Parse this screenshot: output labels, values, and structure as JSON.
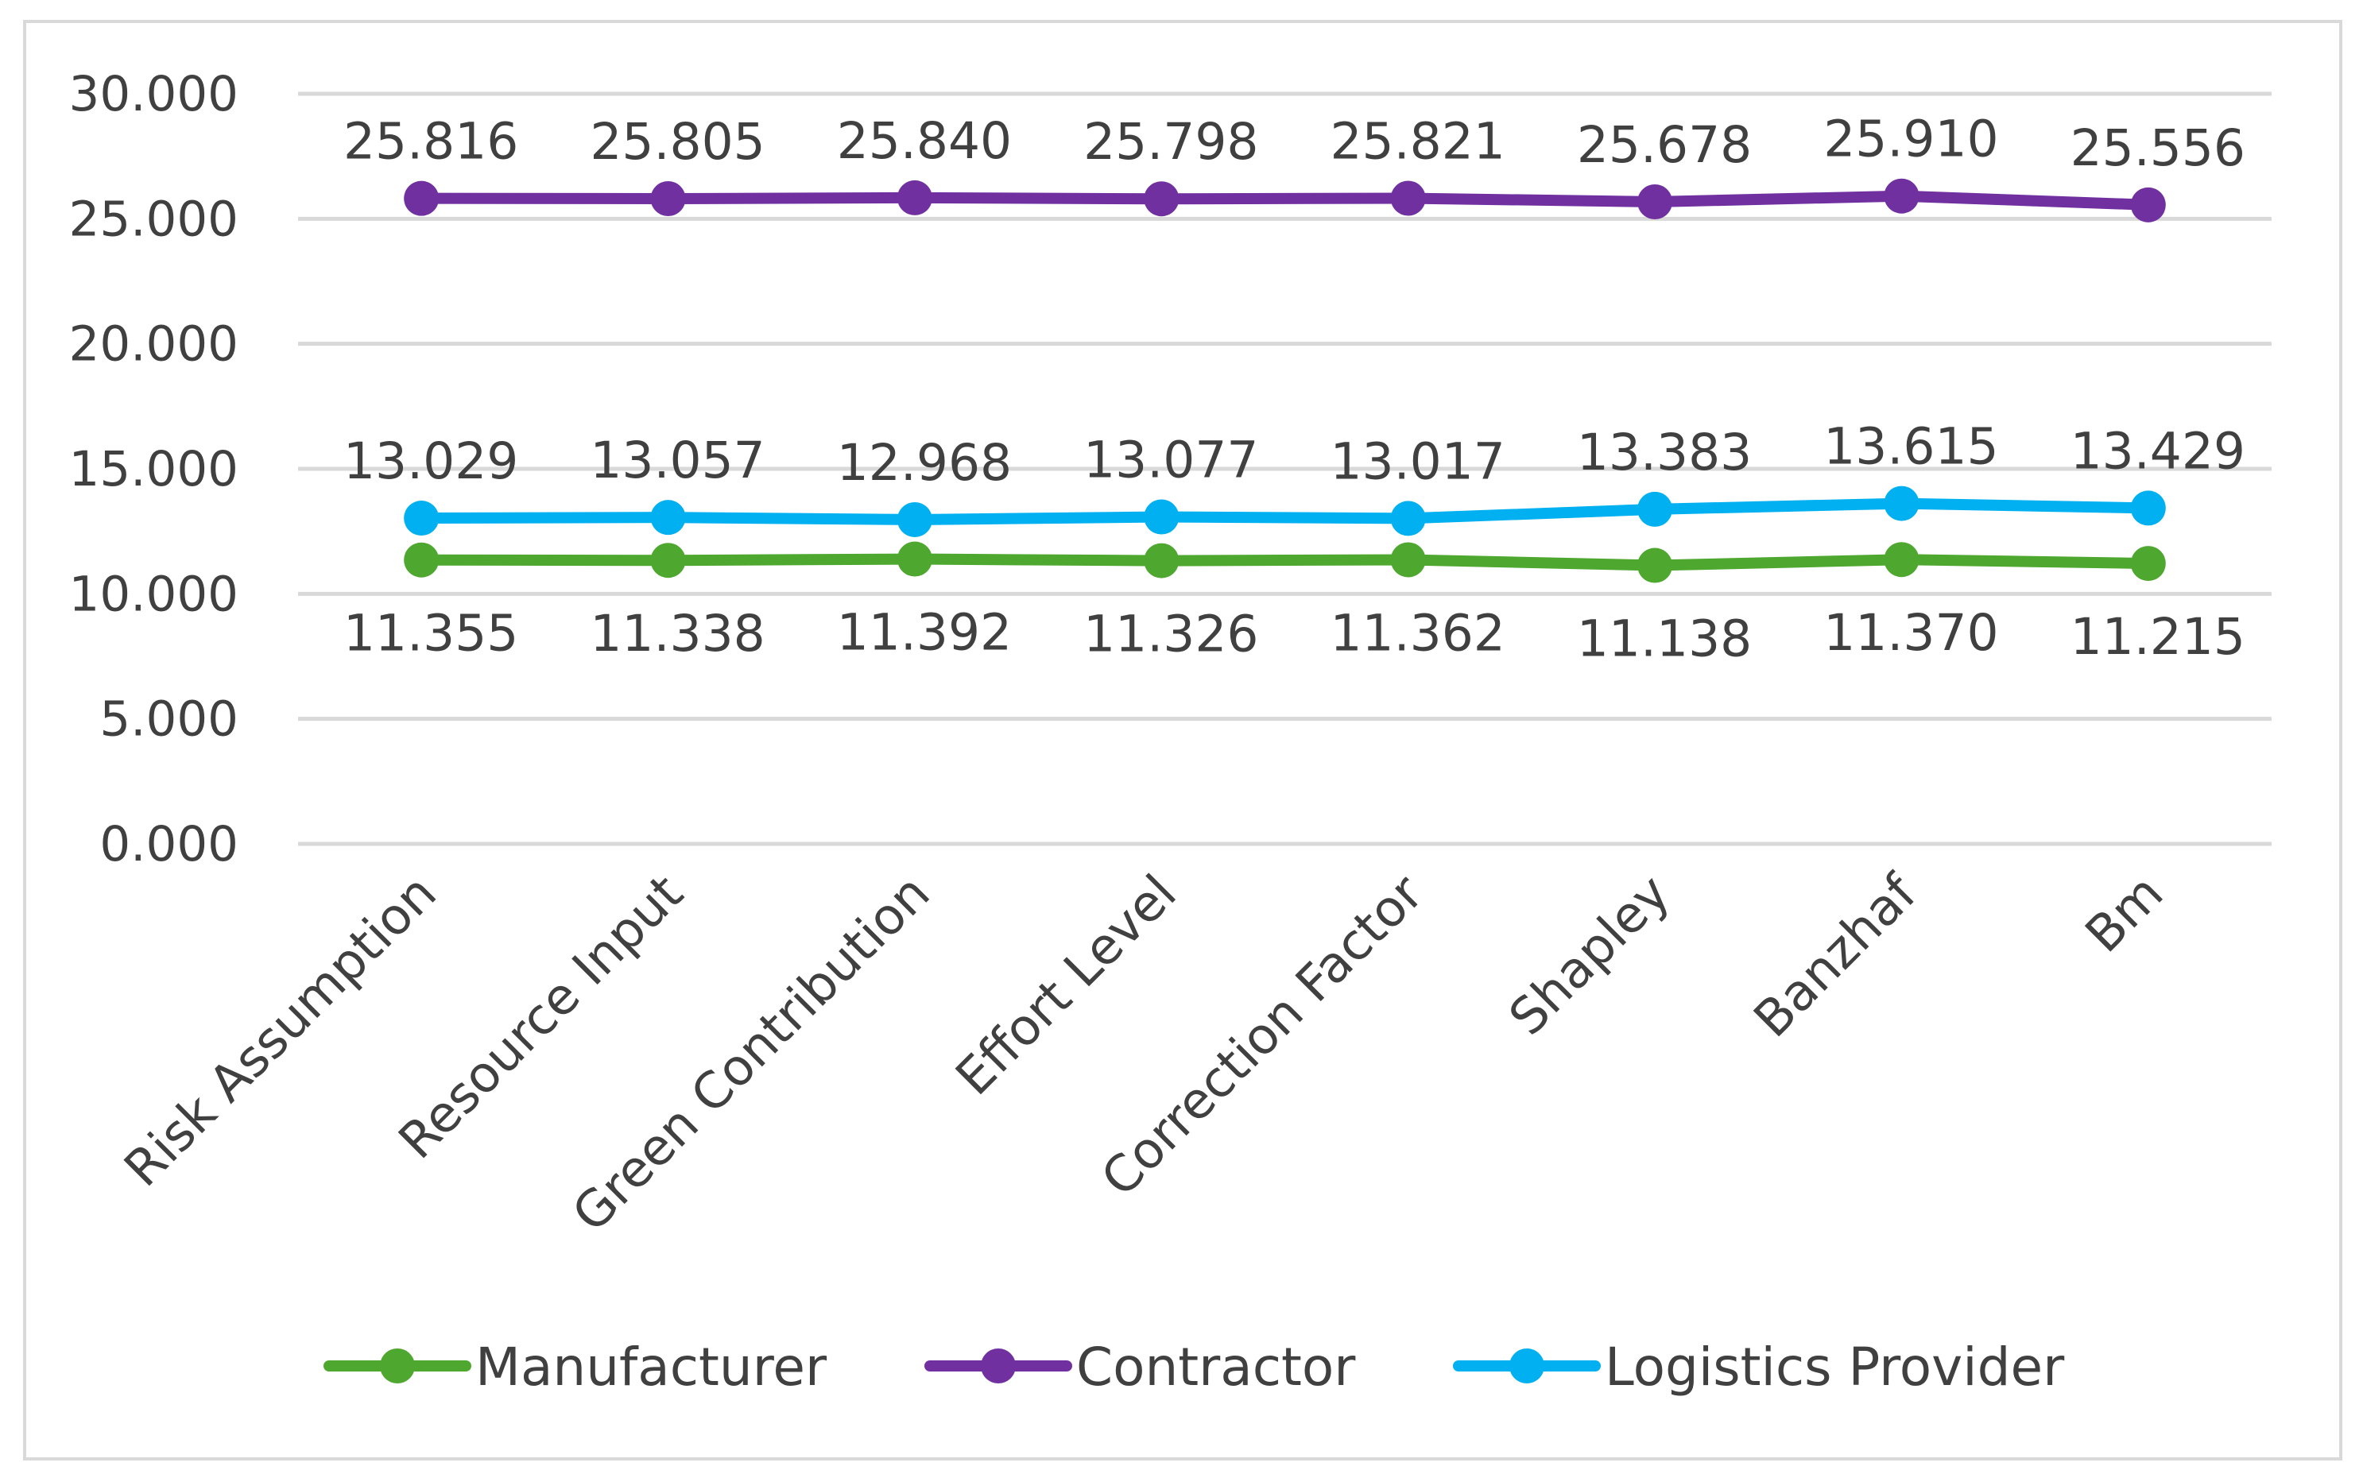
{
  "chart_data": {
    "type": "line",
    "title": "",
    "xlabel": "",
    "ylabel": "",
    "ylim": [
      0,
      30
    ],
    "yticks": [
      "0.000",
      "5.000",
      "10.000",
      "15.000",
      "20.000",
      "25.000",
      "30.000"
    ],
    "grid": true,
    "legend_position": "bottom",
    "categories": [
      "Risk Assumption",
      "Resource Input",
      "Green Contribution",
      "Effort Level",
      "Correction Factor",
      "Shapley",
      "Banzhaf",
      "Bm"
    ],
    "series": [
      {
        "name": "Manufacturer",
        "color": "#4ea72e",
        "values": [
          11.355,
          11.338,
          11.392,
          11.326,
          11.362,
          11.138,
          11.37,
          11.215
        ],
        "labels": [
          "11.355",
          "11.338",
          "11.392",
          "11.326",
          "11.362",
          "11.138",
          "11.370",
          "11.215"
        ],
        "label_position": "below"
      },
      {
        "name": "Contractor",
        "color": "#7030a0",
        "values": [
          25.816,
          25.805,
          25.84,
          25.798,
          25.821,
          25.678,
          25.91,
          25.556
        ],
        "labels": [
          "25.816",
          "25.805",
          "25.840",
          "25.798",
          "25.821",
          "25.678",
          "25.910",
          "25.556"
        ],
        "label_position": "above"
      },
      {
        "name": "Logistics Provider",
        "color": "#00b0f0",
        "values": [
          13.029,
          13.057,
          12.968,
          13.077,
          13.017,
          13.383,
          13.615,
          13.429
        ],
        "labels": [
          "13.029",
          "13.057",
          "12.968",
          "13.077",
          "13.017",
          "13.383",
          "13.615",
          "13.429"
        ],
        "label_position": "above"
      }
    ]
  }
}
